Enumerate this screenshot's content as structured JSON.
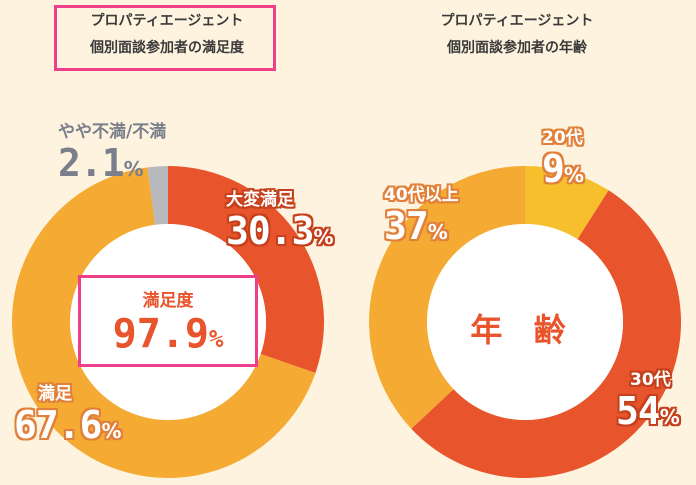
{
  "left": {
    "title_line1": "プロパティエージェント",
    "title_line2": "個別面談参加者の満足度",
    "center_label": "満足度",
    "center_value": "97.9",
    "center_unit": "%"
  },
  "right": {
    "title_line1": "プロパティエージェント",
    "title_line2": "個別面談参加者の年齢",
    "center_label": "年 齢"
  },
  "chart_data": [
    {
      "type": "pie",
      "title": "プロパティエージェント 個別面談参加者の満足度",
      "categories": [
        "大変満足",
        "満足",
        "やや不満/不満"
      ],
      "values": [
        30.3,
        67.6,
        2.1
      ],
      "unit": "%",
      "colors": [
        "#e8542c",
        "#f5ab33",
        "#b8b9bd"
      ]
    },
    {
      "type": "pie",
      "title": "プロパティエージェント 個別面談参加者の年齢",
      "categories": [
        "20代",
        "30代",
        "40代以上"
      ],
      "values": [
        9,
        54,
        37
      ],
      "unit": "%",
      "colors": [
        "#f7bf2c",
        "#e8542c",
        "#f5ab33"
      ]
    }
  ],
  "labels_left": [
    {
      "name": "大変満足",
      "value": "30.3",
      "unit": "%"
    },
    {
      "name": "満足",
      "value": "67.6",
      "unit": "%"
    },
    {
      "name": "やや不満/不満",
      "value": "2.1",
      "unit": "%"
    }
  ],
  "labels_right": [
    {
      "name": "20代",
      "value": "9",
      "unit": "%"
    },
    {
      "name": "30代",
      "value": "54",
      "unit": "%"
    },
    {
      "name": "40代以上",
      "value": "37",
      "unit": "%"
    }
  ]
}
